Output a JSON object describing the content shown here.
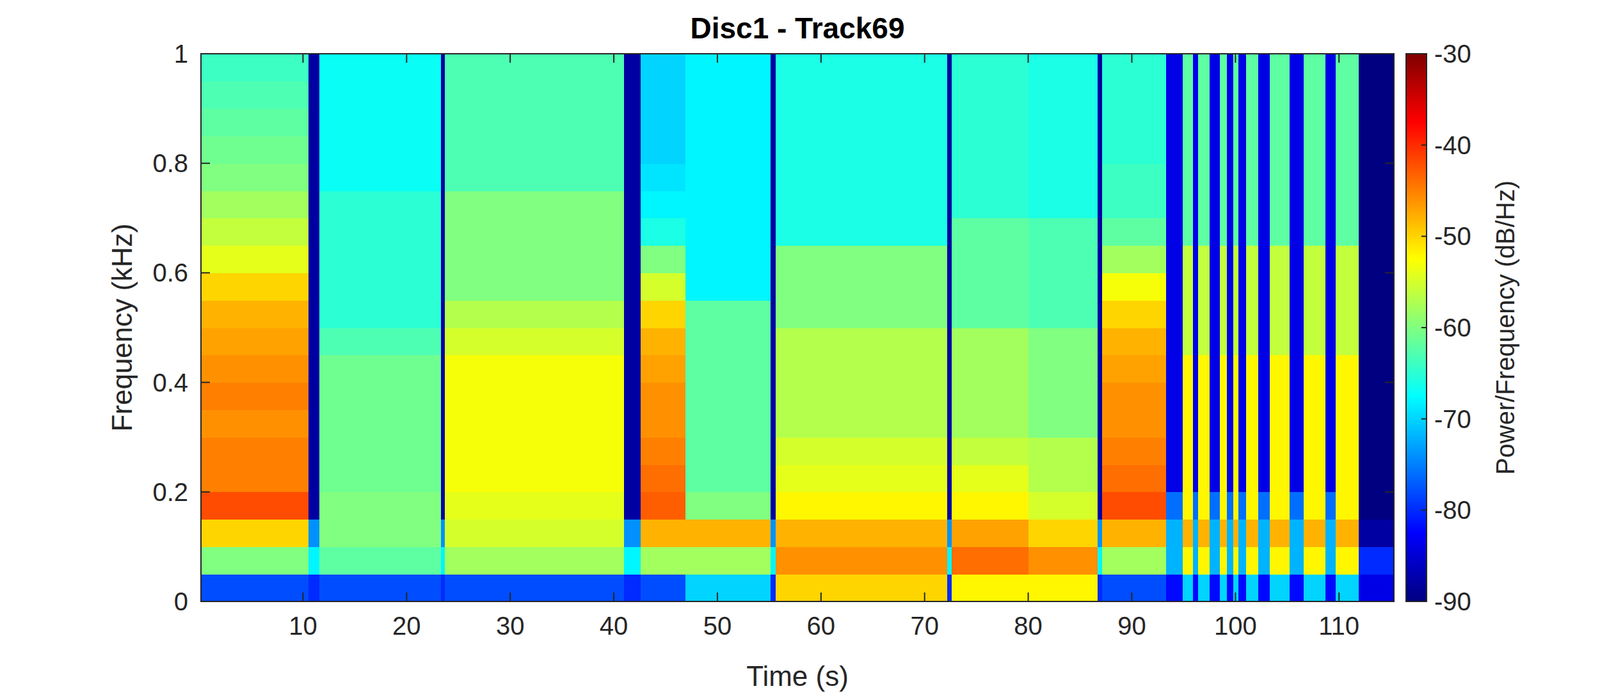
{
  "chart_data": {
    "type": "heatmap",
    "title": "Disc1 - Track69",
    "x_label": "Time (s)",
    "y_label": "Frequency (kHz)",
    "xlim": [
      0.15,
      115.3
    ],
    "ylim": [
      0,
      1
    ],
    "xticks": [
      10,
      20,
      30,
      40,
      50,
      60,
      70,
      80,
      90,
      100,
      110
    ],
    "yticks": [
      0,
      0.2,
      0.4,
      0.6,
      0.8,
      1
    ],
    "grid": false,
    "x_edges": [
      0.15,
      10.5,
      11.6,
      23.3,
      23.7,
      41.0,
      42.6,
      46.9,
      55.1,
      55.6,
      72.2,
      72.6,
      80.0,
      86.7,
      87.1,
      93.3,
      94.9,
      95.9,
      96.4,
      97.5,
      98.5,
      99.2,
      99.8,
      100.3,
      101.0,
      102.2,
      103.3,
      105.2,
      106.6,
      108.7,
      109.7,
      111.9,
      115.3
    ],
    "y_edges": [
      0,
      0.05,
      0.1,
      0.15,
      0.2,
      0.25,
      0.3,
      0.35,
      0.4,
      0.45,
      0.5,
      0.55,
      0.6,
      0.65,
      0.7,
      0.75,
      0.8,
      0.85,
      0.9,
      0.95,
      1
    ],
    "z": [
      [
        -78,
        -60,
        -50,
        -42,
        -45,
        -45,
        -46,
        -45,
        -46,
        -47,
        -48,
        -50,
        -54,
        -56,
        -58,
        -60,
        -61,
        -62,
        -63,
        -64
      ],
      [
        -80,
        -68,
        -74,
        -88,
        -88,
        -88,
        -88,
        -88,
        -88,
        -88,
        -88,
        -88,
        -88,
        -88,
        -88,
        -88,
        -88,
        -88,
        -88,
        -88
      ],
      [
        -78,
        -62,
        -60,
        -60,
        -61,
        -61,
        -61,
        -61,
        -61,
        -63,
        -65,
        -65,
        -65,
        -65,
        -65,
        -67,
        -67,
        -67,
        -67,
        -67
      ],
      [
        -80,
        -68,
        -74,
        -88,
        -88,
        -88,
        -88,
        -88,
        -88,
        -88,
        -88,
        -88,
        -88,
        -88,
        -88,
        -88,
        -88,
        -88,
        -88,
        -88
      ],
      [
        -78,
        -58,
        -55,
        -54,
        -53,
        -53,
        -53,
        -53,
        -53,
        -55,
        -57,
        -60,
        -60,
        -60,
        -60,
        -63,
        -63,
        -63,
        -63,
        -63
      ],
      [
        -80,
        -68,
        -74,
        -88,
        -88,
        -88,
        -88,
        -88,
        -88,
        -88,
        -88,
        -88,
        -88,
        -88,
        -88,
        -88,
        -88,
        -88,
        -88,
        -88
      ],
      [
        -78,
        -58,
        -48,
        -43,
        -44,
        -45,
        -46,
        -46,
        -47,
        -48,
        -50,
        -55,
        -60,
        -66,
        -68,
        -69,
        -70,
        -70,
        -70,
        -70
      ],
      [
        -70,
        -58,
        -48,
        -60,
        -62,
        -62,
        -62,
        -62,
        -62,
        -62,
        -62,
        -68,
        -68,
        -68,
        -68,
        -68,
        -68,
        -68,
        -68,
        -68
      ],
      [
        -80,
        -68,
        -74,
        -88,
        -88,
        -88,
        -88,
        -88,
        -88,
        -88,
        -88,
        -88,
        -88,
        -88,
        -88,
        -88,
        -88,
        -88,
        -88,
        -88
      ],
      [
        -50,
        -46,
        -48,
        -52,
        -54,
        -55,
        -57,
        -57,
        -57,
        -57,
        -60,
        -60,
        -60,
        -66,
        -66,
        -66,
        -66,
        -66,
        -66,
        -66
      ],
      [
        -80,
        -68,
        -74,
        -88,
        -88,
        -88,
        -88,
        -88,
        -88,
        -88,
        -88,
        -88,
        -88,
        -88,
        -88,
        -88,
        -88,
        -88,
        -88,
        -88
      ],
      [
        -52,
        -44,
        -47,
        -52,
        -54,
        -56,
        -58,
        -58,
        -58,
        -58,
        -62,
        -62,
        -62,
        -62,
        -65,
        -65,
        -65,
        -65,
        -65,
        -65
      ],
      [
        -52,
        -46,
        -50,
        -55,
        -57,
        -57,
        -60,
        -60,
        -60,
        -60,
        -63,
        -63,
        -63,
        -63,
        -66,
        -66,
        -66,
        -66,
        -66,
        -66
      ],
      [
        -80,
        -68,
        -74,
        -88,
        -88,
        -88,
        -88,
        -88,
        -88,
        -88,
        -88,
        -88,
        -88,
        -88,
        -88,
        -88,
        -88,
        -88,
        -88,
        -88
      ],
      [
        -78,
        -58,
        -48,
        -42,
        -44,
        -45,
        -46,
        -46,
        -47,
        -48,
        -50,
        -53,
        -58,
        -62,
        -64,
        -64,
        -65,
        -65,
        -65,
        -65
      ],
      [
        -82,
        -72,
        -72,
        -76,
        -84,
        -84,
        -84,
        -84,
        -84,
        -84,
        -84,
        -84,
        -84,
        -84,
        -84,
        -84,
        -84,
        -84,
        -84,
        -84
      ],
      [
        -70,
        -52,
        -48,
        -52,
        -52,
        -52,
        -52,
        -52,
        -52,
        -56,
        -56,
        -56,
        -56,
        -62,
        -62,
        -62,
        -62,
        -62,
        -62,
        -62
      ],
      [
        -82,
        -72,
        -72,
        -76,
        -84,
        -84,
        -84,
        -84,
        -84,
        -84,
        -84,
        -84,
        -84,
        -84,
        -84,
        -84,
        -84,
        -84,
        -84,
        -84
      ],
      [
        -70,
        -52,
        -48,
        -52,
        -52,
        -52,
        -52,
        -52,
        -52,
        -56,
        -56,
        -56,
        -56,
        -62,
        -62,
        -62,
        -62,
        -62,
        -62,
        -62
      ],
      [
        -82,
        -72,
        -72,
        -76,
        -84,
        -84,
        -84,
        -84,
        -84,
        -84,
        -84,
        -84,
        -84,
        -84,
        -84,
        -84,
        -84,
        -84,
        -84,
        -84
      ],
      [
        -70,
        -52,
        -48,
        -52,
        -52,
        -52,
        -52,
        -52,
        -52,
        -56,
        -56,
        -56,
        -56,
        -62,
        -62,
        -62,
        -62,
        -62,
        -62,
        -62
      ],
      [
        -82,
        -72,
        -72,
        -76,
        -84,
        -84,
        -84,
        -84,
        -84,
        -84,
        -84,
        -84,
        -84,
        -84,
        -84,
        -84,
        -84,
        -84,
        -84,
        -84
      ],
      [
        -70,
        -52,
        -48,
        -52,
        -52,
        -52,
        -52,
        -52,
        -52,
        -56,
        -56,
        -56,
        -56,
        -62,
        -62,
        -62,
        -62,
        -62,
        -62,
        -62
      ],
      [
        -82,
        -72,
        -72,
        -76,
        -84,
        -84,
        -84,
        -84,
        -84,
        -84,
        -84,
        -84,
        -84,
        -84,
        -84,
        -84,
        -84,
        -84,
        -84,
        -84
      ],
      [
        -70,
        -52,
        -48,
        -52,
        -52,
        -52,
        -52,
        -52,
        -52,
        -56,
        -56,
        -56,
        -56,
        -62,
        -62,
        -62,
        -62,
        -62,
        -62,
        -62
      ],
      [
        -82,
        -72,
        -72,
        -76,
        -84,
        -84,
        -84,
        -84,
        -84,
        -84,
        -84,
        -84,
        -84,
        -84,
        -84,
        -84,
        -84,
        -84,
        -84,
        -84
      ],
      [
        -70,
        -52,
        -48,
        -52,
        -52,
        -52,
        -52,
        -52,
        -52,
        -56,
        -56,
        -56,
        -56,
        -62,
        -62,
        -62,
        -62,
        -62,
        -62,
        -62
      ],
      [
        -82,
        -72,
        -72,
        -76,
        -84,
        -84,
        -84,
        -84,
        -84,
        -84,
        -84,
        -84,
        -84,
        -84,
        -84,
        -84,
        -84,
        -84,
        -84,
        -84
      ],
      [
        -70,
        -52,
        -48,
        -52,
        -52,
        -52,
        -52,
        -52,
        -52,
        -56,
        -56,
        -56,
        -56,
        -62,
        -62,
        -62,
        -62,
        -62,
        -62,
        -62
      ],
      [
        -82,
        -72,
        -72,
        -76,
        -84,
        -84,
        -84,
        -84,
        -84,
        -84,
        -84,
        -84,
        -84,
        -84,
        -84,
        -84,
        -84,
        -84,
        -84,
        -84
      ],
      [
        -70,
        -52,
        -48,
        -52,
        -52,
        -52,
        -52,
        -52,
        -52,
        -56,
        -56,
        -56,
        -56,
        -62,
        -62,
        -62,
        -62,
        -62,
        -62,
        -62
      ],
      [
        -84,
        -80,
        -88,
        -90,
        -90,
        -90,
        -90,
        -90,
        -90,
        -90,
        -90,
        -90,
        -90,
        -90,
        -90,
        -90,
        -90,
        -90,
        -90,
        -90
      ]
    ],
    "colorbar": {
      "label": "Power/Frequency (dB/Hz)",
      "lim": [
        -90,
        -30
      ],
      "ticks": [
        -90,
        -80,
        -70,
        -60,
        -50,
        -40,
        -30
      ]
    }
  }
}
